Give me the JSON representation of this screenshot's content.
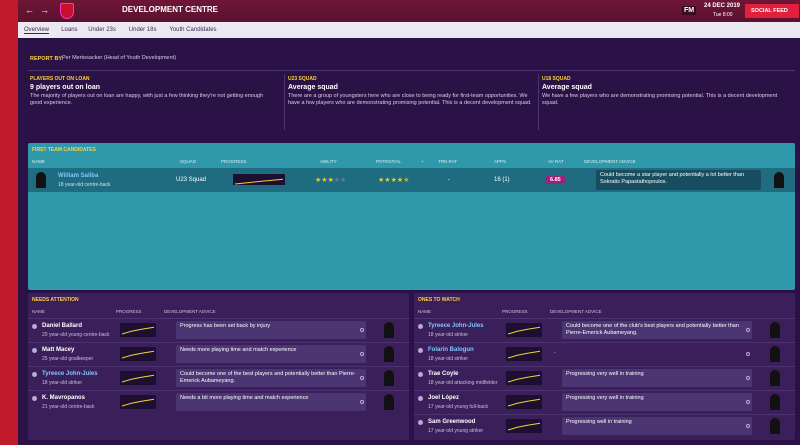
{
  "top_bar": {
    "title": "DEVELOPMENT CENTRE",
    "logo": "FM",
    "date": "24 DEC 2019",
    "time": "Tue 8:00",
    "social_feed": "SOCIAL FEED"
  },
  "tabs": [
    "Overview",
    "Loans",
    "Under 23s",
    "Under 18s",
    "Youth Candidates"
  ],
  "report": {
    "label": "REPORT BY:",
    "author": "Per Mertesacker (Head of Youth Development)"
  },
  "summaries": [
    {
      "label": "PLAYERS OUT ON LOAN",
      "title": "9 players out on loan",
      "text": "The majority of players out on loan are happy, with just a few thinking they're not getting enough good experience."
    },
    {
      "label": "U23 SQUAD",
      "title": "Average squad",
      "text": "There are a group of youngsters here who are close to being ready for first-team opportunities. We have a few players who are demonstrating promising potential. This is a decent development squad."
    },
    {
      "label": "U18 SQUAD",
      "title": "Average squad",
      "text": "We have a few players who are demonstrating promising potential. This is a decent development squad."
    }
  ],
  "first_team": {
    "heading": "FIRST TEAM CANDIDATES",
    "columns": [
      "NAME",
      "SQUAD",
      "PROGRESS",
      "ABILITY",
      "POTENTIAL",
      "+",
      "TRN RAT",
      "APPS",
      "AV RAT",
      "DEVELOPMENT ADVICE"
    ],
    "rows": [
      {
        "name": "William Saliba",
        "desc": "18 year-old centre-back",
        "squad": "U23 Squad",
        "ability": 3,
        "potential": 4.5,
        "trn_rat": "-",
        "apps": "16 (1)",
        "av_rat": "6.85",
        "advice": "Could become a star player and potentially a lot better than Sokratis Papastathopoulos."
      }
    ]
  },
  "needs_attention": {
    "heading": "NEEDS ATTENTION",
    "columns": [
      "NAME",
      "PROGRESS",
      "DEVELOPMENT ADVICE"
    ],
    "rows": [
      {
        "name": "Daniel Ballard",
        "desc": "20 year-old young centre-back",
        "advice": "Progress has been set back by injury"
      },
      {
        "name": "Matt Macey",
        "desc": "25 year-old goalkeeper",
        "advice": "Needs more playing time and match experience"
      },
      {
        "name": "Tyreece John-Jules",
        "desc": "18 year-old striker",
        "advice": "Could become one of the best players and potentially better than Pierre-Emerick Aubameyang."
      },
      {
        "name": "K. Mavropanos",
        "desc": "21 year-old centre-back",
        "advice": "Needs a bit more playing time and match experience"
      }
    ]
  },
  "ones_to_watch": {
    "heading": "ONES TO WATCH",
    "columns": [
      "NAME",
      "PROGRESS",
      "DEVELOPMENT ADVICE"
    ],
    "rows": [
      {
        "name": "Tyreece John-Jules",
        "desc": "18 year-old striker",
        "advice": "Could become one of the club's best players and potentially better than Pierre-Emerick Aubameyang."
      },
      {
        "name": "Folarin Balogun",
        "desc": "18 year-old striker",
        "advice": "-"
      },
      {
        "name": "Trae Coyle",
        "desc": "18 year-old attacking midfielder",
        "advice": "Progressing very well in training"
      },
      {
        "name": "Joel López",
        "desc": "17 year-old young full-back",
        "advice": "Progressing very well in training"
      },
      {
        "name": "Sam Greenwood",
        "desc": "17 year-old young striker",
        "advice": "Progressing well in training"
      }
    ]
  }
}
